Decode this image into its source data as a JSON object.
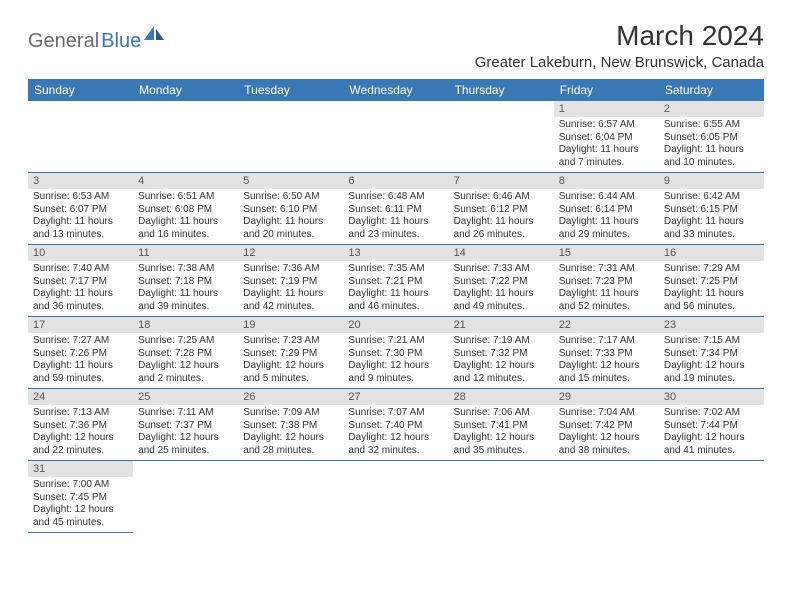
{
  "logo": {
    "part1": "General",
    "part2": "Blue"
  },
  "title": "March 2024",
  "location": "Greater Lakeburn, New Brunswick, Canada",
  "colors": {
    "header_bg": "#3a77b5",
    "header_fg": "#ffffff",
    "daynum_bg": "#e3e3e3",
    "daynum_fg": "#555555",
    "body_fg": "#333333",
    "logo_gray": "#6a6a6a",
    "logo_blue": "#3a77b5",
    "border": "#3a77b5"
  },
  "typography": {
    "title_fontsize": 28,
    "location_fontsize": 15,
    "dayhead_fontsize": 12,
    "daynum_fontsize": 11,
    "body_fontsize": 10
  },
  "weekdays": [
    "Sunday",
    "Monday",
    "Tuesday",
    "Wednesday",
    "Thursday",
    "Friday",
    "Saturday"
  ],
  "weeks": [
    [
      null,
      null,
      null,
      null,
      null,
      {
        "n": "1",
        "sunrise": "Sunrise: 6:57 AM",
        "sunset": "Sunset: 6:04 PM",
        "daylight": "Daylight: 11 hours and 7 minutes."
      },
      {
        "n": "2",
        "sunrise": "Sunrise: 6:55 AM",
        "sunset": "Sunset: 6:05 PM",
        "daylight": "Daylight: 11 hours and 10 minutes."
      }
    ],
    [
      {
        "n": "3",
        "sunrise": "Sunrise: 6:53 AM",
        "sunset": "Sunset: 6:07 PM",
        "daylight": "Daylight: 11 hours and 13 minutes."
      },
      {
        "n": "4",
        "sunrise": "Sunrise: 6:51 AM",
        "sunset": "Sunset: 6:08 PM",
        "daylight": "Daylight: 11 hours and 16 minutes."
      },
      {
        "n": "5",
        "sunrise": "Sunrise: 6:50 AM",
        "sunset": "Sunset: 6:10 PM",
        "daylight": "Daylight: 11 hours and 20 minutes."
      },
      {
        "n": "6",
        "sunrise": "Sunrise: 6:48 AM",
        "sunset": "Sunset: 6:11 PM",
        "daylight": "Daylight: 11 hours and 23 minutes."
      },
      {
        "n": "7",
        "sunrise": "Sunrise: 6:46 AM",
        "sunset": "Sunset: 6:12 PM",
        "daylight": "Daylight: 11 hours and 26 minutes."
      },
      {
        "n": "8",
        "sunrise": "Sunrise: 6:44 AM",
        "sunset": "Sunset: 6:14 PM",
        "daylight": "Daylight: 11 hours and 29 minutes."
      },
      {
        "n": "9",
        "sunrise": "Sunrise: 6:42 AM",
        "sunset": "Sunset: 6:15 PM",
        "daylight": "Daylight: 11 hours and 33 minutes."
      }
    ],
    [
      {
        "n": "10",
        "sunrise": "Sunrise: 7:40 AM",
        "sunset": "Sunset: 7:17 PM",
        "daylight": "Daylight: 11 hours and 36 minutes."
      },
      {
        "n": "11",
        "sunrise": "Sunrise: 7:38 AM",
        "sunset": "Sunset: 7:18 PM",
        "daylight": "Daylight: 11 hours and 39 minutes."
      },
      {
        "n": "12",
        "sunrise": "Sunrise: 7:36 AM",
        "sunset": "Sunset: 7:19 PM",
        "daylight": "Daylight: 11 hours and 42 minutes."
      },
      {
        "n": "13",
        "sunrise": "Sunrise: 7:35 AM",
        "sunset": "Sunset: 7:21 PM",
        "daylight": "Daylight: 11 hours and 46 minutes."
      },
      {
        "n": "14",
        "sunrise": "Sunrise: 7:33 AM",
        "sunset": "Sunset: 7:22 PM",
        "daylight": "Daylight: 11 hours and 49 minutes."
      },
      {
        "n": "15",
        "sunrise": "Sunrise: 7:31 AM",
        "sunset": "Sunset: 7:23 PM",
        "daylight": "Daylight: 11 hours and 52 minutes."
      },
      {
        "n": "16",
        "sunrise": "Sunrise: 7:29 AM",
        "sunset": "Sunset: 7:25 PM",
        "daylight": "Daylight: 11 hours and 56 minutes."
      }
    ],
    [
      {
        "n": "17",
        "sunrise": "Sunrise: 7:27 AM",
        "sunset": "Sunset: 7:26 PM",
        "daylight": "Daylight: 11 hours and 59 minutes."
      },
      {
        "n": "18",
        "sunrise": "Sunrise: 7:25 AM",
        "sunset": "Sunset: 7:28 PM",
        "daylight": "Daylight: 12 hours and 2 minutes."
      },
      {
        "n": "19",
        "sunrise": "Sunrise: 7:23 AM",
        "sunset": "Sunset: 7:29 PM",
        "daylight": "Daylight: 12 hours and 5 minutes."
      },
      {
        "n": "20",
        "sunrise": "Sunrise: 7:21 AM",
        "sunset": "Sunset: 7:30 PM",
        "daylight": "Daylight: 12 hours and 9 minutes."
      },
      {
        "n": "21",
        "sunrise": "Sunrise: 7:19 AM",
        "sunset": "Sunset: 7:32 PM",
        "daylight": "Daylight: 12 hours and 12 minutes."
      },
      {
        "n": "22",
        "sunrise": "Sunrise: 7:17 AM",
        "sunset": "Sunset: 7:33 PM",
        "daylight": "Daylight: 12 hours and 15 minutes."
      },
      {
        "n": "23",
        "sunrise": "Sunrise: 7:15 AM",
        "sunset": "Sunset: 7:34 PM",
        "daylight": "Daylight: 12 hours and 19 minutes."
      }
    ],
    [
      {
        "n": "24",
        "sunrise": "Sunrise: 7:13 AM",
        "sunset": "Sunset: 7:36 PM",
        "daylight": "Daylight: 12 hours and 22 minutes."
      },
      {
        "n": "25",
        "sunrise": "Sunrise: 7:11 AM",
        "sunset": "Sunset: 7:37 PM",
        "daylight": "Daylight: 12 hours and 25 minutes."
      },
      {
        "n": "26",
        "sunrise": "Sunrise: 7:09 AM",
        "sunset": "Sunset: 7:38 PM",
        "daylight": "Daylight: 12 hours and 28 minutes."
      },
      {
        "n": "27",
        "sunrise": "Sunrise: 7:07 AM",
        "sunset": "Sunset: 7:40 PM",
        "daylight": "Daylight: 12 hours and 32 minutes."
      },
      {
        "n": "28",
        "sunrise": "Sunrise: 7:06 AM",
        "sunset": "Sunset: 7:41 PM",
        "daylight": "Daylight: 12 hours and 35 minutes."
      },
      {
        "n": "29",
        "sunrise": "Sunrise: 7:04 AM",
        "sunset": "Sunset: 7:42 PM",
        "daylight": "Daylight: 12 hours and 38 minutes."
      },
      {
        "n": "30",
        "sunrise": "Sunrise: 7:02 AM",
        "sunset": "Sunset: 7:44 PM",
        "daylight": "Daylight: 12 hours and 41 minutes."
      }
    ],
    [
      {
        "n": "31",
        "sunrise": "Sunrise: 7:00 AM",
        "sunset": "Sunset: 7:45 PM",
        "daylight": "Daylight: 12 hours and 45 minutes."
      },
      null,
      null,
      null,
      null,
      null,
      null
    ]
  ]
}
